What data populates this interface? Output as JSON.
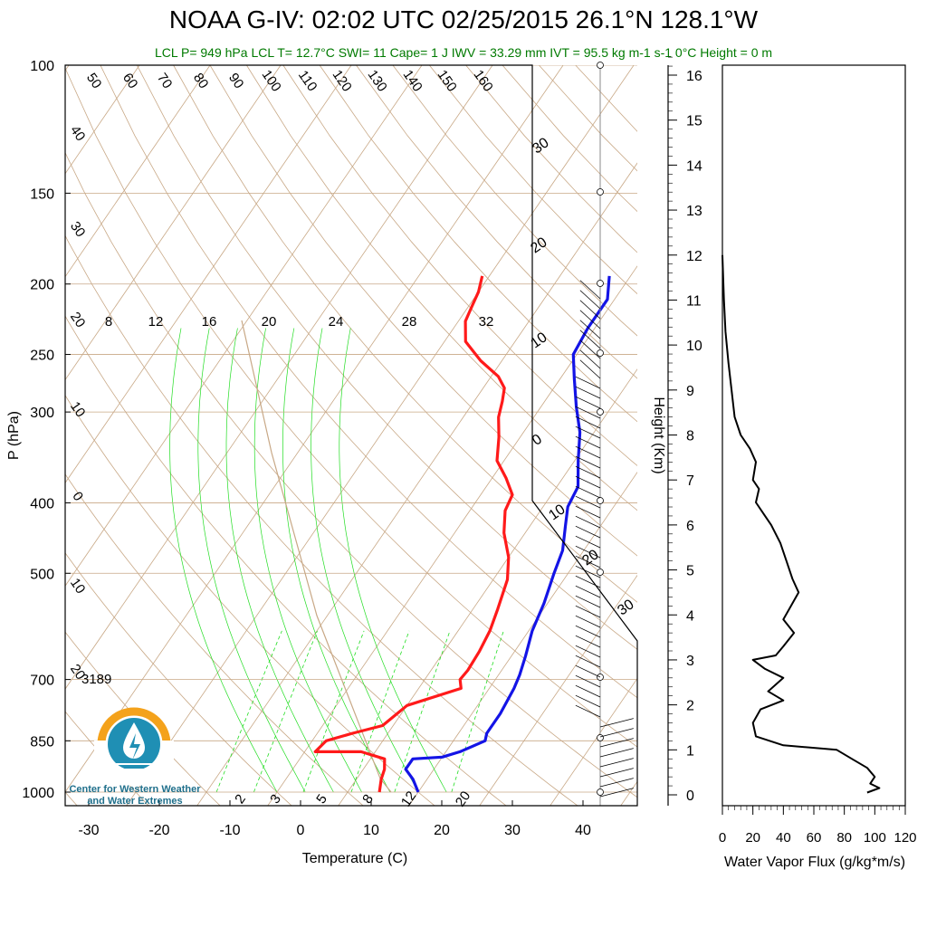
{
  "title": "NOAA G-IV: 02:02 UTC 02/25/2015  26.1°N 128.1°W",
  "subtitle": "LCL P= 949 hPa  LCL T= 12.7°C  SWI= 11  Cape= 1 J  IWV = 33.29 mm  IVT = 95.5 kg m-1 s-1  0°C Height = 0 m",
  "annotation_value": "3189",
  "logo": {
    "line1": "Center for Western Weather",
    "line2": "and Water Extremes",
    "colors": {
      "ring": "#f4a21b",
      "drop": "#1f8fb4",
      "text": "#1f6f8b"
    }
  },
  "colors": {
    "temperature": "#ff1a1a",
    "dewpoint": "#1414e6",
    "isotherm": "#c8a886",
    "mixing_ratio": "#22dd22",
    "moist_adiabat": "#22dd22",
    "dry_adiabat_label": "#c8a886",
    "subtitle": "#007a00"
  },
  "chart_data": [
    {
      "type": "line",
      "name": "skew-t",
      "xlabel": "Temperature (C)",
      "ylabel": "P (hPa)",
      "xlim": [
        -30,
        40
      ],
      "x_ticks": [
        "-30",
        "-20",
        "-10",
        "0",
        "10",
        "20",
        "30",
        "40"
      ],
      "y_ticks": [
        "100",
        "150",
        "200",
        "250",
        "300",
        "400",
        "500",
        "700",
        "850",
        "1000"
      ],
      "y_scale": "log-pressure",
      "mixing_ratio_labels_upper": [
        "8",
        "12",
        "16",
        "20",
        "24",
        "28",
        "32"
      ],
      "mixing_ratio_labels_lower": [
        "2",
        "3",
        "5",
        "8",
        "12",
        "20"
      ],
      "dry_adiabat_labels_top": [
        "50",
        "60",
        "70",
        "80",
        "90",
        "100",
        "110",
        "120",
        "130",
        "140",
        "150",
        "160"
      ],
      "dry_adiabat_labels_left": [
        "40",
        "30",
        "20",
        "10",
        "0",
        "10",
        "20"
      ],
      "isotherm_labels_right": [
        "30",
        "20",
        "10",
        "0",
        "10",
        "20",
        "30"
      ],
      "series": [
        {
          "key": "temperature",
          "points": [
            [
              -21,
              195
            ],
            [
              -20,
              205
            ],
            [
              -19.5,
              215
            ],
            [
              -19,
              225
            ],
            [
              -17,
              240
            ],
            [
              -13,
              255
            ],
            [
              -9,
              268
            ],
            [
              -7,
              278
            ],
            [
              -6,
              290
            ],
            [
              -5,
              305
            ],
            [
              -3,
              325
            ],
            [
              -1,
              350
            ],
            [
              2,
              370
            ],
            [
              4.5,
              390
            ],
            [
              5,
              410
            ],
            [
              7,
              440
            ],
            [
              10,
              475
            ],
            [
              12,
              510
            ],
            [
              13.5,
              560
            ],
            [
              14.5,
              600
            ],
            [
              15,
              640
            ],
            [
              15.2,
              680
            ],
            [
              15,
              700
            ],
            [
              16,
              720
            ],
            [
              10,
              760
            ],
            [
              8.5,
              810
            ],
            [
              5,
              830
            ],
            [
              2,
              850
            ],
            [
              1.5,
              880
            ],
            [
              8,
              880
            ],
            [
              12,
              900
            ],
            [
              13,
              930
            ],
            [
              13.5,
              960
            ],
            [
              14.5,
              1000
            ]
          ]
        },
        {
          "key": "dewpoint",
          "points": [
            [
              -3,
              195
            ],
            [
              -1,
              210
            ],
            [
              -1,
              230
            ],
            [
              -0.5,
              250
            ],
            [
              2,
              270
            ],
            [
              5,
              295
            ],
            [
              8,
              320
            ],
            [
              10.5,
              350
            ],
            [
              13,
              380
            ],
            [
              13.5,
              405
            ],
            [
              15,
              430
            ],
            [
              17,
              465
            ],
            [
              18,
              500
            ],
            [
              19.5,
              550
            ],
            [
              20.5,
              600
            ],
            [
              22,
              650
            ],
            [
              23,
              690
            ],
            [
              23.5,
              720
            ],
            [
              24,
              780
            ],
            [
              24,
              830
            ],
            [
              24.5,
              850
            ],
            [
              22,
              880
            ],
            [
              20,
              895
            ],
            [
              16,
              900
            ],
            [
              16,
              930
            ],
            [
              18,
              960
            ],
            [
              20,
              1000
            ]
          ]
        }
      ]
    },
    {
      "type": "line",
      "name": "water-vapor-flux",
      "xlabel": "Water Vapor Flux (g/kg*m/s)",
      "ylabel": "Height (Km)",
      "xlim": [
        0,
        120
      ],
      "ylim": [
        0,
        16
      ],
      "x_ticks": [
        "0",
        "20",
        "40",
        "60",
        "80",
        "100",
        "120"
      ],
      "y_ticks": [
        "0",
        "1",
        "2",
        "3",
        "4",
        "5",
        "6",
        "7",
        "8",
        "9",
        "10",
        "11",
        "12",
        "13",
        "14",
        "15",
        "16"
      ],
      "series": [
        {
          "key": "flux",
          "points": [
            [
              0,
              12
            ],
            [
              1,
              11
            ],
            [
              2,
              10.3
            ],
            [
              4,
              9.6
            ],
            [
              6,
              9
            ],
            [
              8,
              8.4
            ],
            [
              12,
              8
            ],
            [
              18,
              7.7
            ],
            [
              22,
              7.4
            ],
            [
              20,
              7
            ],
            [
              24,
              6.8
            ],
            [
              22,
              6.5
            ],
            [
              28,
              6.2
            ],
            [
              32,
              6
            ],
            [
              38,
              5.6
            ],
            [
              42,
              5.2
            ],
            [
              46,
              4.8
            ],
            [
              50,
              4.5
            ],
            [
              45,
              4.2
            ],
            [
              40,
              3.9
            ],
            [
              47,
              3.6
            ],
            [
              40,
              3.3
            ],
            [
              35,
              3.1
            ],
            [
              20,
              3
            ],
            [
              28,
              2.8
            ],
            [
              40,
              2.6
            ],
            [
              30,
              2.3
            ],
            [
              40,
              2.1
            ],
            [
              25,
              1.9
            ],
            [
              20,
              1.6
            ],
            [
              22,
              1.3
            ],
            [
              40,
              1.1
            ],
            [
              75,
              1
            ],
            [
              85,
              0.8
            ],
            [
              95,
              0.6
            ],
            [
              100,
              0.4
            ],
            [
              97,
              0.25
            ],
            [
              103,
              0.15
            ],
            [
              95,
              0.05
            ]
          ]
        }
      ]
    }
  ]
}
